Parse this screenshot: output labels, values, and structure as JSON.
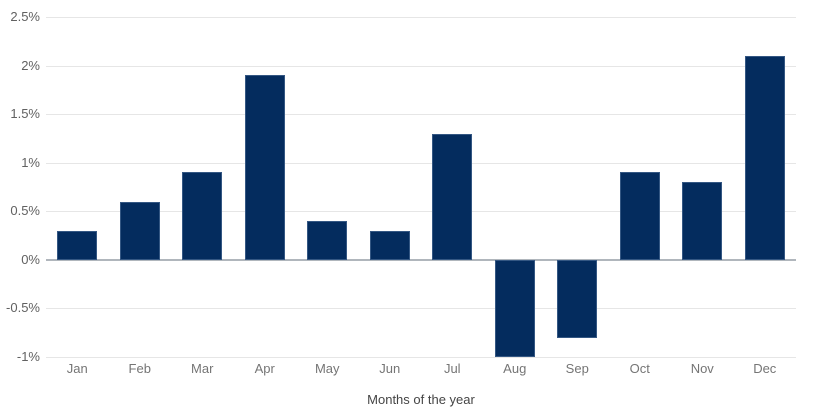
{
  "chart_data": {
    "type": "bar",
    "title": "",
    "xlabel": "Months of the year",
    "ylabel": "",
    "categories": [
      "Jan",
      "Feb",
      "Mar",
      "Apr",
      "May",
      "Jun",
      "Jul",
      "Aug",
      "Sep",
      "Oct",
      "Nov",
      "Dec"
    ],
    "values": [
      0.3,
      0.6,
      0.9,
      1.9,
      0.4,
      0.3,
      1.3,
      -1.0,
      -0.8,
      0.9,
      0.8,
      2.1
    ],
    "ylim": [
      -1,
      2.5
    ],
    "yticks": [
      2.5,
      2,
      1.5,
      1,
      0.5,
      0,
      -0.5,
      -1
    ],
    "ytick_labels": [
      "2.5%",
      "2%",
      "1.5%",
      "1%",
      "0.5%",
      "0%",
      "-0.5%",
      "-1%"
    ],
    "grid": true,
    "legend_position": "none",
    "colors": {
      "bar_fill": "#042c5e",
      "bar_edge": "#5d7ca3",
      "gridline": "#e6e6e6",
      "zero_baseline": "#b0b6bc",
      "y_label_text": "#616161",
      "x_label_text": "#757575",
      "axis_title_text": "#454545",
      "background": "#ffffff"
    }
  }
}
